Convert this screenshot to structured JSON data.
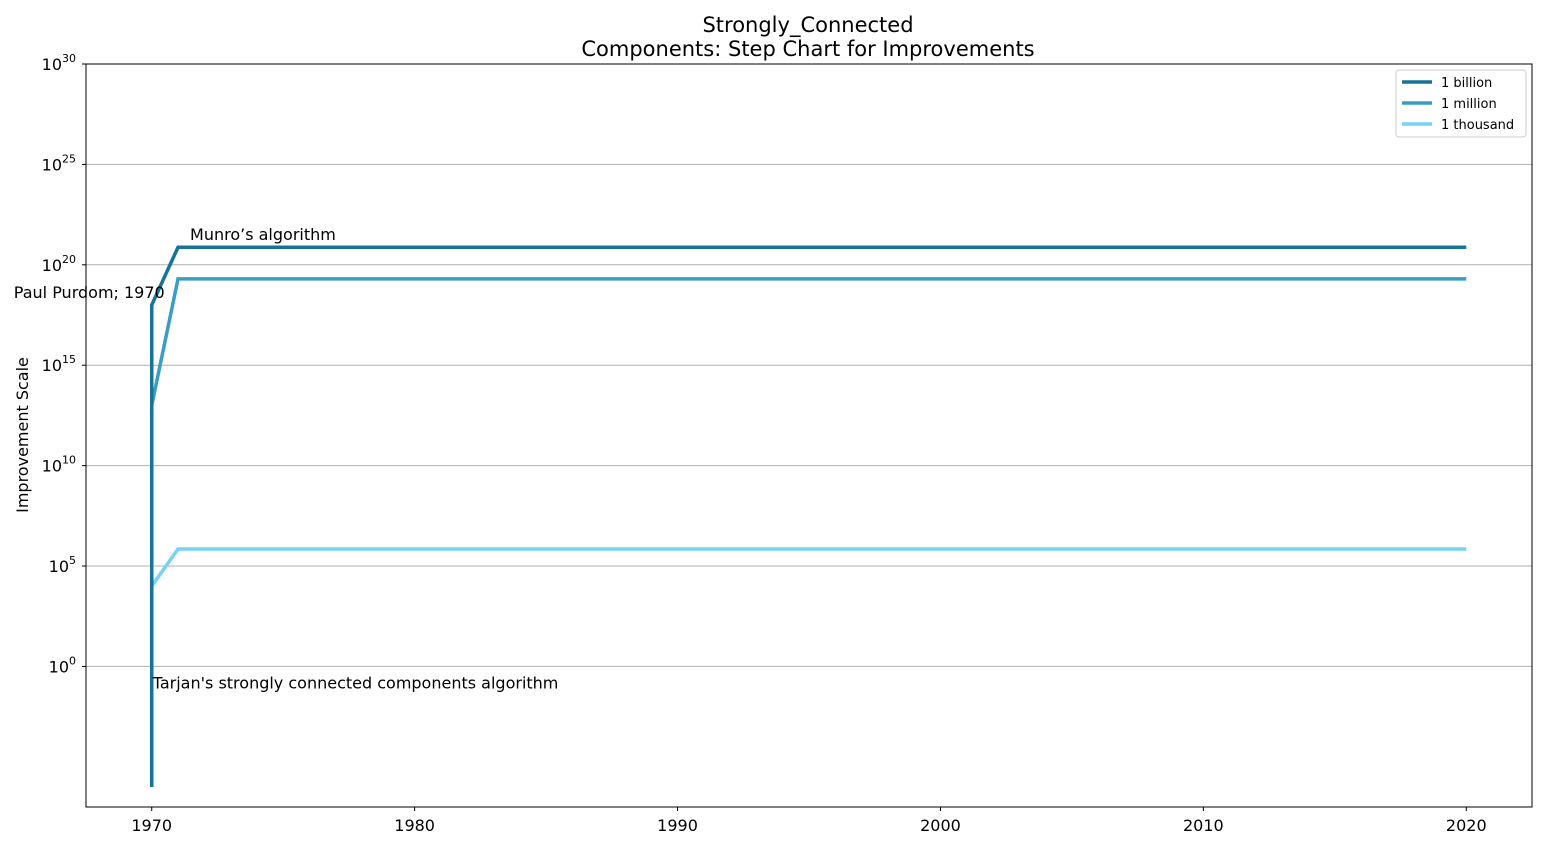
{
  "chart_data": {
    "type": "line",
    "step": "post",
    "title_lines": [
      "Strongly_Connected",
      "Components: Step Chart for Improvements"
    ],
    "xlabel": "",
    "ylabel": "Improvement Scale",
    "xlim": [
      1967.5,
      2022.5
    ],
    "y_scale": "log",
    "ylim_log10": [
      -7,
      30
    ],
    "x_ticks": [
      1970,
      1980,
      1990,
      2000,
      2010,
      2020
    ],
    "x_tick_labels": [
      "1970",
      "1980",
      "1990",
      "2000",
      "2010",
      "2020"
    ],
    "y_ticks_log10": [
      0,
      5,
      10,
      15,
      20,
      25,
      30
    ],
    "y_tick_labels": [
      {
        "base": "10",
        "exp": "0"
      },
      {
        "base": "10",
        "exp": "5"
      },
      {
        "base": "10",
        "exp": "10"
      },
      {
        "base": "10",
        "exp": "15"
      },
      {
        "base": "10",
        "exp": "20"
      },
      {
        "base": "10",
        "exp": "25"
      },
      {
        "base": "10",
        "exp": "30"
      }
    ],
    "grid": "y-major",
    "legend_position": "top-right",
    "series": [
      {
        "name": "1 billion",
        "color": "#157497",
        "x": [
          1970,
          1970,
          1971,
          2020
        ],
        "y": [
          1e-06,
          1e+18,
          7.5e+20,
          7.5e+20
        ]
      },
      {
        "name": "1 million",
        "color": "#3a9dc5",
        "x": [
          1970,
          1970,
          1971,
          2020
        ],
        "y": [
          1e-06,
          10000000000000.0,
          2e+19,
          2e+19
        ]
      },
      {
        "name": "1 thousand",
        "color": "#78d2f5",
        "x": [
          1970,
          1970,
          1971,
          2020
        ],
        "y": [
          1e-06,
          10000.0,
          700000.0,
          700000.0
        ]
      }
    ],
    "annotations": [
      {
        "text": "Munro’s algorithm",
        "x": 1971,
        "y": 7.5e+20,
        "anchor": "start"
      },
      {
        "text": "Paul Purdom; 1970",
        "x": 1970,
        "y": 1e+18,
        "anchor": "end"
      },
      {
        "text": "Tarjan's strongly connected components algorithm",
        "x": 1970,
        "y": 0.1,
        "anchor": "start"
      }
    ]
  }
}
